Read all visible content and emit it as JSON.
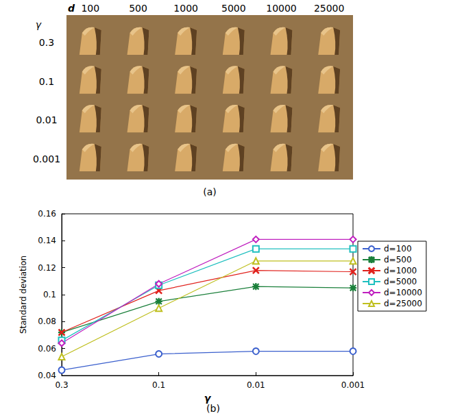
{
  "panel_a": {
    "column_header": "d",
    "columns": [
      "100",
      "500",
      "1000",
      "5000",
      "10000",
      "25000"
    ],
    "row_header": "γ",
    "rows": [
      "0.3",
      "0.1",
      "0.01",
      "0.001"
    ],
    "caption": "(a)"
  },
  "chart_data": {
    "type": "line",
    "title": "(b)",
    "x_label": "γ",
    "y_label": "Standard deviation",
    "categories": [
      "0.3",
      "0.1",
      "0.01",
      "0.001"
    ],
    "series": [
      {
        "name": "d=100",
        "color": "#3a5fcd",
        "marker": "circle",
        "values": [
          0.044,
          0.056,
          0.058,
          0.058
        ]
      },
      {
        "name": "d=500",
        "color": "#1a7f3a",
        "marker": "asterisk",
        "values": [
          0.072,
          0.095,
          0.106,
          0.105
        ]
      },
      {
        "name": "d=1000",
        "color": "#e0201b",
        "marker": "x",
        "values": [
          0.072,
          0.103,
          0.118,
          0.117
        ]
      },
      {
        "name": "d=5000",
        "color": "#1fbfbf",
        "marker": "square",
        "values": [
          0.066,
          0.107,
          0.134,
          0.134
        ]
      },
      {
        "name": "d=10000",
        "color": "#bf1fbf",
        "marker": "diamond",
        "values": [
          0.064,
          0.108,
          0.141,
          0.141
        ]
      },
      {
        "name": "d=25000",
        "color": "#bfbf1f",
        "marker": "triangle",
        "values": [
          0.054,
          0.09,
          0.125,
          0.125
        ]
      }
    ],
    "ylim": [
      0.04,
      0.16
    ],
    "yticks": [
      0.04,
      0.06,
      0.08,
      0.1,
      0.12,
      0.14,
      0.16
    ],
    "grid": false,
    "legend": "right"
  }
}
